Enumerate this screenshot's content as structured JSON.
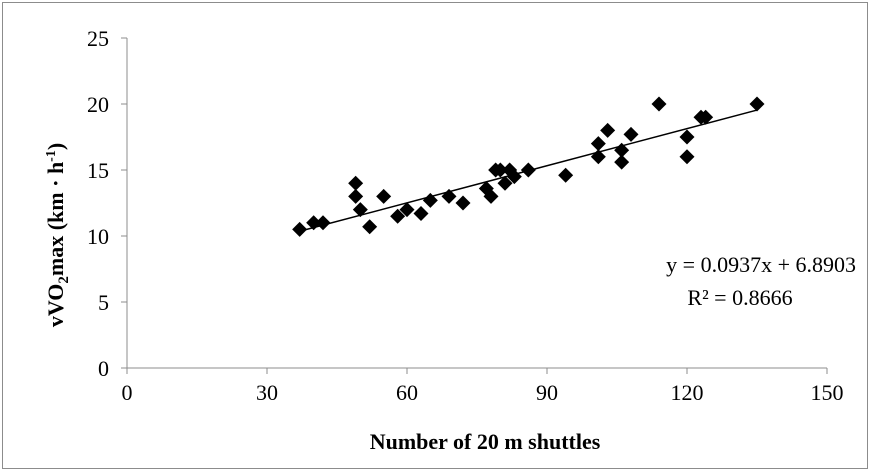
{
  "chart_data": {
    "type": "scatter",
    "title": "",
    "xlabel": "Number of 20 m shuttles",
    "ylabel": {
      "prefix": "vVO",
      "sub": "2",
      "mid": "max (km · h",
      "sup": "-1",
      "suffix": ")"
    },
    "xlim": [
      0,
      150
    ],
    "ylim": [
      0,
      25
    ],
    "xticks": [
      0,
      30,
      60,
      90,
      120,
      150
    ],
    "yticks": [
      0,
      5,
      10,
      15,
      20,
      25
    ],
    "grid": false,
    "legend": "none",
    "marker": "diamond",
    "marker_color": "#000000",
    "series": [
      {
        "points": [
          [
            37,
            10.5
          ],
          [
            40,
            11.0
          ],
          [
            42,
            11.0
          ],
          [
            49,
            14.0
          ],
          [
            49,
            13.0
          ],
          [
            50,
            12.0
          ],
          [
            52,
            10.7
          ],
          [
            55,
            13.0
          ],
          [
            58,
            11.5
          ],
          [
            60,
            12.0
          ],
          [
            63,
            11.7
          ],
          [
            65,
            12.7
          ],
          [
            69,
            13.0
          ],
          [
            72,
            12.5
          ],
          [
            77,
            13.6
          ],
          [
            78,
            13.0
          ],
          [
            79,
            15.0
          ],
          [
            80,
            15.0
          ],
          [
            81,
            14.0
          ],
          [
            82,
            15.0
          ],
          [
            83,
            14.5
          ],
          [
            86,
            15.0
          ],
          [
            94,
            14.6
          ],
          [
            101,
            16.0
          ],
          [
            101,
            17.0
          ],
          [
            103,
            18.0
          ],
          [
            106,
            16.5
          ],
          [
            106,
            15.6
          ],
          [
            108,
            17.7
          ],
          [
            114,
            20.0
          ],
          [
            120,
            17.5
          ],
          [
            120,
            16.0
          ],
          [
            123,
            19.0
          ],
          [
            124,
            19.0
          ],
          [
            135,
            20.0
          ]
        ]
      }
    ],
    "trendline": {
      "slope": 0.0937,
      "intercept": 6.8903,
      "x_range": [
        37,
        135
      ],
      "equation_label": "y = 0.0937x + 6.8903",
      "r2_label": "R² = 0.8666"
    }
  }
}
